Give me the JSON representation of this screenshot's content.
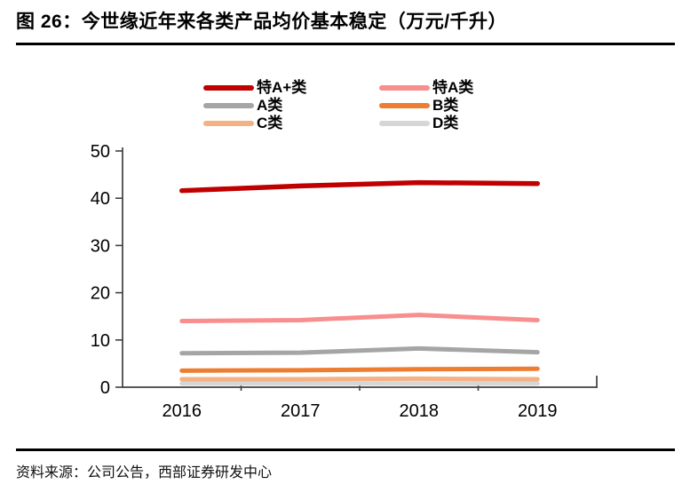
{
  "header": {
    "title": "图 26：今世缘近年来各类产品均价基本稳定（万元/千升）"
  },
  "footer": {
    "source": "资料来源：公司公告，西部证券研发中心"
  },
  "colors": {
    "rule": "#000000",
    "axis": "#404040",
    "text": "#000000"
  },
  "chart_data": {
    "type": "line",
    "title": "今世缘近年来各类产品均价基本稳定",
    "unit": "万元/千升",
    "categories": [
      "2016",
      "2017",
      "2018",
      "2019"
    ],
    "series": [
      {
        "name": "特A+类",
        "color": "#C00000",
        "values": [
          41.6,
          42.6,
          43.3,
          43.1
        ]
      },
      {
        "name": "特A类",
        "color": "#F88E8E",
        "values": [
          14.0,
          14.2,
          15.3,
          14.2
        ]
      },
      {
        "name": "A类",
        "color": "#A5A5A5",
        "values": [
          7.2,
          7.3,
          8.2,
          7.4
        ]
      },
      {
        "name": "B类",
        "color": "#ED7D31",
        "values": [
          3.5,
          3.6,
          3.8,
          3.9
        ]
      },
      {
        "name": "C类",
        "color": "#F4B183",
        "values": [
          1.7,
          1.7,
          1.8,
          1.7
        ]
      },
      {
        "name": "D类",
        "color": "#D6D6D6",
        "values": [
          0.8,
          0.8,
          0.8,
          0.8
        ]
      }
    ],
    "ylim": [
      0,
      50
    ],
    "yticks": [
      0,
      10,
      20,
      30,
      40,
      50
    ],
    "xlabel": "",
    "ylabel": "",
    "grid": false,
    "legend_position": "top"
  }
}
